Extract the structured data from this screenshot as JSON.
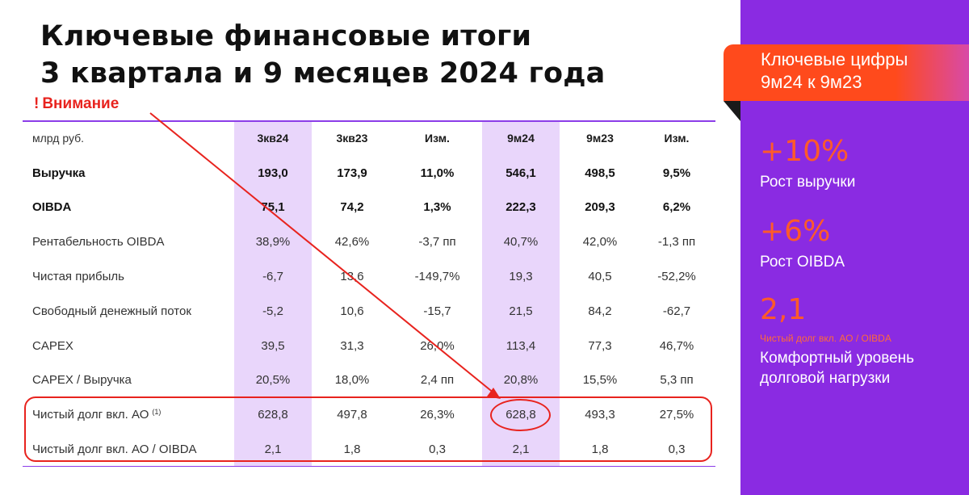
{
  "title": {
    "line1": "Ключевые финансовые итоги",
    "line2": "3 квартала и 9 месяцев 2024 года"
  },
  "attention": {
    "mark": "!",
    "text": "Внимание"
  },
  "table": {
    "header": [
      "млрд руб.",
      "3кв24",
      "3кв23",
      "Изм.",
      "9м24",
      "9м23",
      "Изм."
    ],
    "rows": [
      {
        "label": "Выручка",
        "bold": true,
        "values": [
          "193,0",
          "173,9",
          "11,0%",
          "546,1",
          "498,5",
          "9,5%"
        ]
      },
      {
        "label": "OIBDA",
        "bold": true,
        "values": [
          "75,1",
          "74,2",
          "1,3%",
          "222,3",
          "209,3",
          "6,2%"
        ]
      },
      {
        "label": "Рентабельность OIBDA",
        "values": [
          "38,9%",
          "42,6%",
          "-3,7 пп",
          "40,7%",
          "42,0%",
          "-1,3 пп"
        ]
      },
      {
        "label": "Чистая прибыль",
        "values": [
          "-6,7",
          "13,6",
          "-149,7%",
          "19,3",
          "40,5",
          "-52,2%"
        ]
      },
      {
        "label": "Свободный денежный поток",
        "values": [
          "-5,2",
          "10,6",
          "-15,7",
          "21,5",
          "84,2",
          "-62,7"
        ]
      },
      {
        "label": "CAPEX",
        "values": [
          "39,5",
          "31,3",
          "26,0%",
          "113,4",
          "77,3",
          "46,7%"
        ]
      },
      {
        "label": "CAPEX / Выручка",
        "values": [
          "20,5%",
          "18,0%",
          "2,4 пп",
          "20,8%",
          "15,5%",
          "5,3 пп"
        ]
      },
      {
        "label": "Чистый долг вкл. АО",
        "footnote": "(1)",
        "values": [
          "628,8",
          "497,8",
          "26,3%",
          "628,8",
          "493,3",
          "27,5%"
        ]
      },
      {
        "label": "Чистый долг вкл. АО / OIBDA",
        "values": [
          "2,1",
          "1,8",
          "0,3",
          "2,1",
          "1,8",
          "0,3"
        ]
      }
    ]
  },
  "side": {
    "heading_line1": "Ключевые цифры",
    "heading_line2": "9м24 к 9м23",
    "metrics": [
      {
        "value": "+10%",
        "label": "Рост выручки"
      },
      {
        "value": "+6%",
        "label": "Рост OIBDA"
      },
      {
        "value": "2,1",
        "sublabel": "Чистый долг вкл. АО / OIBDA",
        "label_line1": "Комфортный уровень",
        "label_line2": "долговой нагрузки"
      }
    ]
  },
  "colors": {
    "accent_purple": "#8a2be2",
    "highlight_column": "#e9d6fb",
    "annotation_red": "#e8231e",
    "metric_orange": "#ff5a2a"
  }
}
